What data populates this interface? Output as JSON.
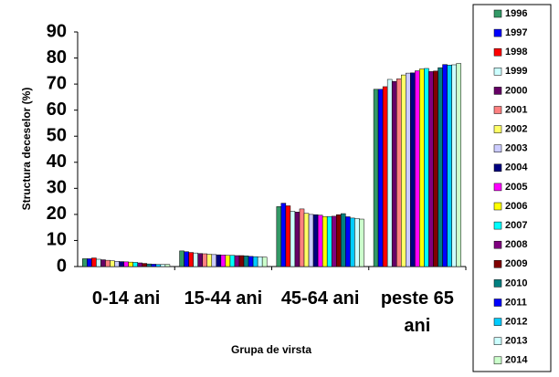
{
  "chart_data": {
    "type": "bar",
    "y_label": "Structura deceselor (%)",
    "x_label": "Grupa de virsta",
    "categories": [
      "0-14 ani",
      "15-44 ani",
      "45-64 ani",
      "peste 65 ani"
    ],
    "ylim": [
      0,
      90
    ],
    "yticks": [
      0,
      10,
      20,
      30,
      40,
      50,
      60,
      70,
      80,
      90
    ],
    "legend": "right",
    "series": [
      {
        "name": "1996",
        "color": "#339966",
        "values": [
          3.0,
          6.0,
          23.0,
          68.0
        ]
      },
      {
        "name": "1997",
        "color": "#0000ff",
        "values": [
          3.0,
          5.7,
          24.3,
          68.0
        ]
      },
      {
        "name": "1998",
        "color": "#ff0000",
        "values": [
          3.3,
          5.4,
          23.3,
          69.0
        ]
      },
      {
        "name": "1999",
        "color": "#ccffff",
        "values": [
          2.8,
          5.2,
          21.2,
          71.8
        ]
      },
      {
        "name": "2000",
        "color": "#660066",
        "values": [
          2.6,
          5.0,
          20.9,
          71.0
        ]
      },
      {
        "name": "2001",
        "color": "#ff8080",
        "values": [
          2.4,
          4.9,
          22.1,
          72.0
        ]
      },
      {
        "name": "2002",
        "color": "#ffff66",
        "values": [
          2.2,
          4.7,
          20.4,
          73.5
        ]
      },
      {
        "name": "2003",
        "color": "#ccccff",
        "values": [
          2.0,
          4.6,
          20.0,
          74.2
        ]
      },
      {
        "name": "2004",
        "color": "#000080",
        "values": [
          1.9,
          4.5,
          19.9,
          74.3
        ]
      },
      {
        "name": "2005",
        "color": "#ff00ff",
        "values": [
          1.8,
          4.4,
          19.7,
          75.1
        ]
      },
      {
        "name": "2006",
        "color": "#ffff00",
        "values": [
          1.7,
          4.3,
          19.2,
          75.8
        ]
      },
      {
        "name": "2007",
        "color": "#00ffff",
        "values": [
          1.6,
          4.3,
          19.2,
          76.0
        ]
      },
      {
        "name": "2008",
        "color": "#800080",
        "values": [
          1.4,
          4.2,
          19.3,
          74.8
        ]
      },
      {
        "name": "2009",
        "color": "#800000",
        "values": [
          1.2,
          4.2,
          19.9,
          75.0
        ]
      },
      {
        "name": "2010",
        "color": "#008080",
        "values": [
          1.0,
          4.1,
          20.3,
          76.3
        ]
      },
      {
        "name": "2011",
        "color": "#0000ff",
        "values": [
          0.9,
          3.9,
          19.1,
          77.5
        ]
      },
      {
        "name": "2012",
        "color": "#00ccff",
        "values": [
          0.8,
          3.8,
          18.6,
          77.3
        ]
      },
      {
        "name": "2013",
        "color": "#ccffff",
        "values": [
          0.8,
          3.7,
          18.4,
          77.4
        ]
      },
      {
        "name": "2014",
        "color": "#ccffcc",
        "values": [
          0.8,
          3.6,
          18.2,
          77.9
        ]
      }
    ]
  }
}
